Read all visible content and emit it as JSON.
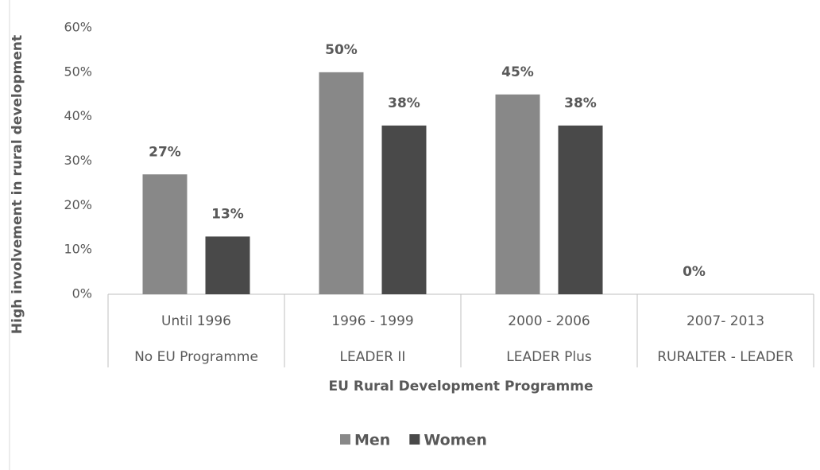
{
  "chart_data": {
    "type": "bar",
    "y_label": "High involvement  in rural development",
    "x_label": "EU Rural Development Programme",
    "categories": [
      [
        "Until 1996",
        "No EU Programme"
      ],
      [
        "1996 - 1999",
        "LEADER II"
      ],
      [
        "2000 - 2006",
        "LEADER Plus"
      ],
      [
        "2007- 2013",
        "RURALTER - LEADER"
      ]
    ],
    "series": [
      {
        "name": "Men",
        "color": "#888888",
        "values": [
          27,
          50,
          45,
          0
        ],
        "value_labels": [
          "27%",
          "50%",
          "45%",
          "0%"
        ]
      },
      {
        "name": "Women",
        "color": "#494949",
        "values": [
          13,
          38,
          38,
          null
        ],
        "value_labels": [
          "13%",
          "38%",
          "38%",
          null
        ]
      }
    ],
    "ylim": [
      0,
      60
    ],
    "yticks": [
      {
        "value": 0,
        "label": "0%"
      },
      {
        "value": 10,
        "label": "10%"
      },
      {
        "value": 20,
        "label": "20%"
      },
      {
        "value": 30,
        "label": "30%"
      },
      {
        "value": 40,
        "label": "40%"
      },
      {
        "value": 50,
        "label": "50%"
      },
      {
        "value": 60,
        "label": "60%"
      }
    ],
    "legend": "bottom",
    "grid": false
  }
}
